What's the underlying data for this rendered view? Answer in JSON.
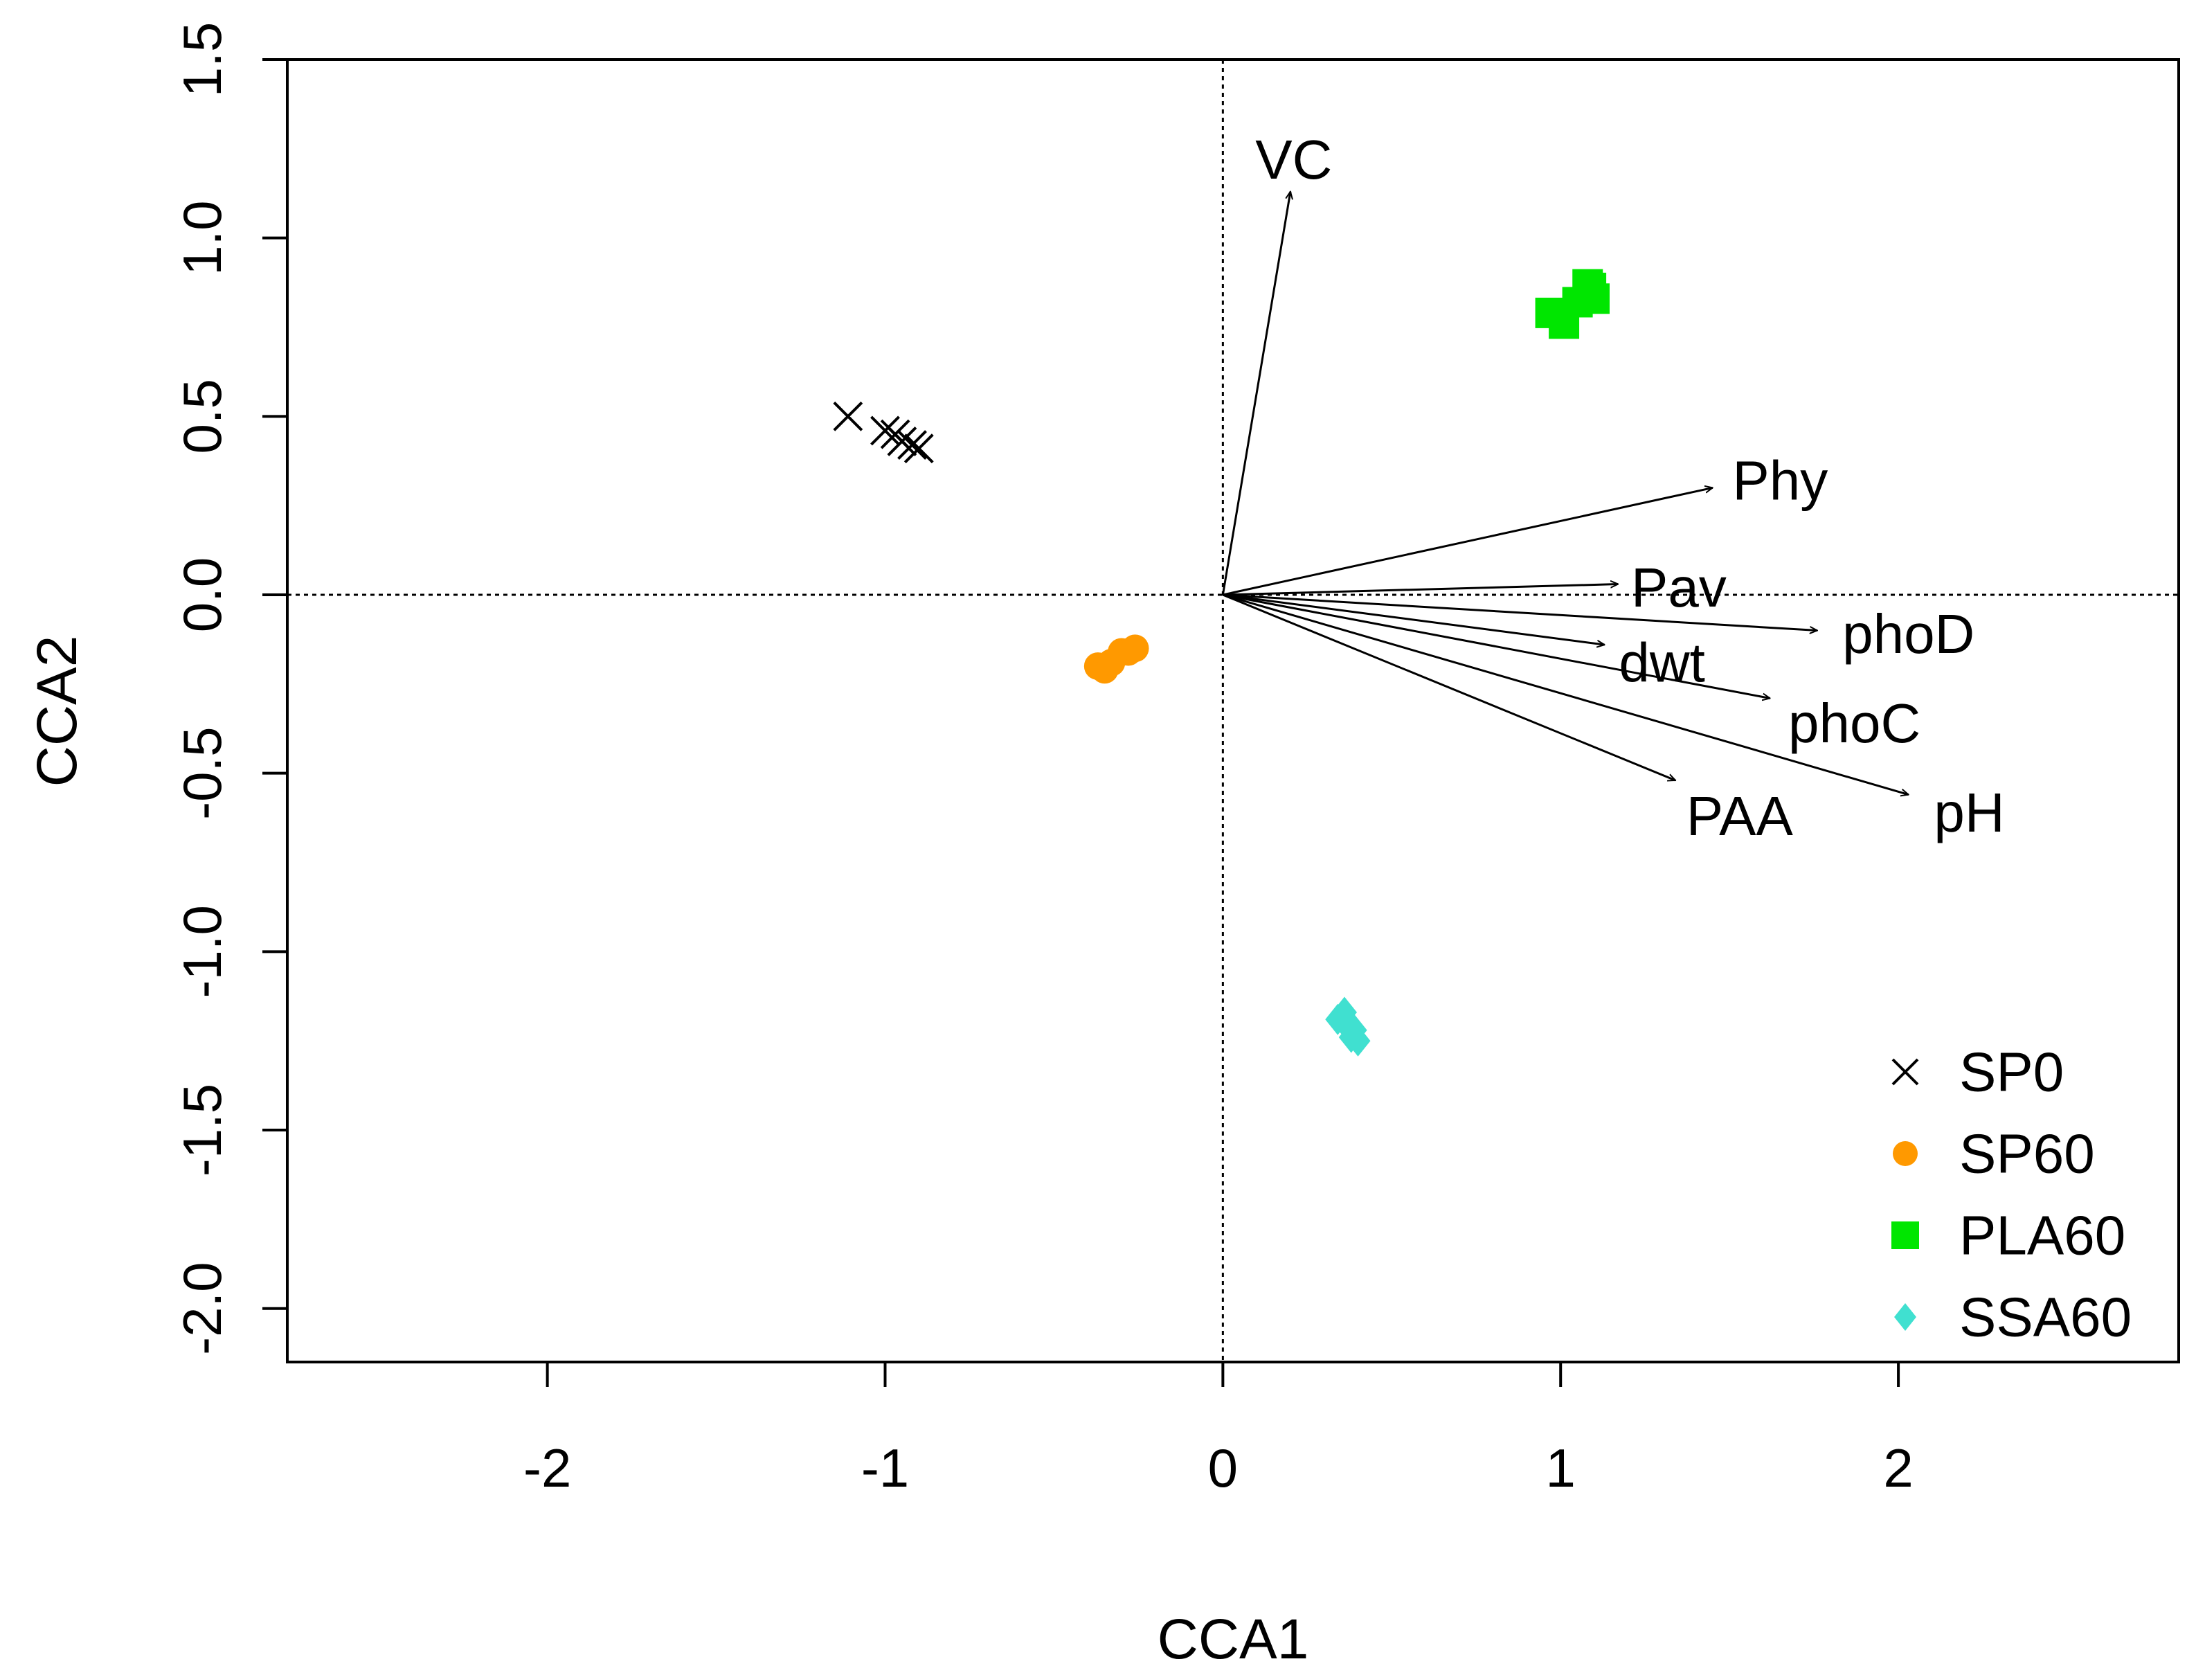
{
  "chart_data": {
    "type": "scatter",
    "title": "",
    "xlabel": "CCA1",
    "ylabel": "CCA2",
    "xlim": [
      -2.77,
      2.83
    ],
    "ylim": [
      -2.15,
      1.5
    ],
    "x_ticks": [
      -2,
      -1,
      0,
      1,
      2
    ],
    "x_tick_labels": [
      "-2",
      "-1",
      "0",
      "1",
      "2"
    ],
    "y_ticks": [
      -2.0,
      -1.5,
      -1.0,
      -0.5,
      0.0,
      0.5,
      1.0,
      1.5
    ],
    "y_tick_labels": [
      "-2.0",
      "-1.5",
      "-1.0",
      "-0.5",
      "0.0",
      "0.5",
      "1.0",
      "1.5"
    ],
    "reference_lines": {
      "x": 0,
      "y": 0,
      "style": "dotted"
    },
    "series": [
      {
        "name": "SP0",
        "marker": "cross",
        "color": "#000000",
        "points": [
          [
            -1.11,
            0.5
          ],
          [
            -1.0,
            0.46
          ],
          [
            -0.97,
            0.45
          ],
          [
            -0.95,
            0.43
          ],
          [
            -0.92,
            0.42
          ],
          [
            -0.9,
            0.41
          ]
        ]
      },
      {
        "name": "SP60",
        "marker": "circle",
        "color": "#FF9900",
        "points": [
          [
            -0.37,
            -0.2
          ],
          [
            -0.35,
            -0.21
          ],
          [
            -0.33,
            -0.19
          ],
          [
            -0.3,
            -0.16
          ],
          [
            -0.28,
            -0.16
          ],
          [
            -0.26,
            -0.15
          ]
        ]
      },
      {
        "name": "PLA60",
        "marker": "square",
        "color": "#00E600",
        "points": [
          [
            0.97,
            0.79
          ],
          [
            1.01,
            0.76
          ],
          [
            1.05,
            0.82
          ],
          [
            1.08,
            0.87
          ],
          [
            1.1,
            0.83
          ],
          [
            1.09,
            0.86
          ]
        ]
      },
      {
        "name": "SSA60",
        "marker": "diamond",
        "color": "#40E0D0",
        "points": [
          [
            0.34,
            -1.19
          ],
          [
            0.36,
            -1.17
          ],
          [
            0.37,
            -1.21
          ],
          [
            0.38,
            -1.24
          ],
          [
            0.39,
            -1.22
          ],
          [
            0.4,
            -1.25
          ]
        ]
      }
    ],
    "vectors": [
      {
        "label": "VC",
        "x": 0.2,
        "y": 1.13,
        "label_x": 0.21,
        "label_y": 1.22
      },
      {
        "label": "Phy",
        "x": 1.45,
        "y": 0.3,
        "label_x": 1.65,
        "label_y": 0.32
      },
      {
        "label": "Pav",
        "x": 1.17,
        "y": 0.03,
        "label_x": 1.35,
        "label_y": 0.02
      },
      {
        "label": "phoD",
        "x": 1.76,
        "y": -0.1,
        "label_x": 2.03,
        "label_y": -0.11
      },
      {
        "label": "dwt",
        "x": 1.13,
        "y": -0.14,
        "label_x": 1.3,
        "label_y": -0.19
      },
      {
        "label": "phoC",
        "x": 1.62,
        "y": -0.29,
        "label_x": 1.87,
        "label_y": -0.36
      },
      {
        "label": "pH",
        "x": 2.03,
        "y": -0.56,
        "label_x": 2.21,
        "label_y": -0.61
      },
      {
        "label": "PAA",
        "x": 1.34,
        "y": -0.52,
        "label_x": 1.53,
        "label_y": -0.62
      }
    ],
    "legend": {
      "position": "bottom-right",
      "entries": [
        {
          "label": "SP0",
          "marker": "cross",
          "color": "#000000"
        },
        {
          "label": "SP60",
          "marker": "circle",
          "color": "#FF9900"
        },
        {
          "label": "PLA60",
          "marker": "square",
          "color": "#00E600"
        },
        {
          "label": "SSA60",
          "marker": "diamond",
          "color": "#40E0D0"
        }
      ]
    }
  }
}
